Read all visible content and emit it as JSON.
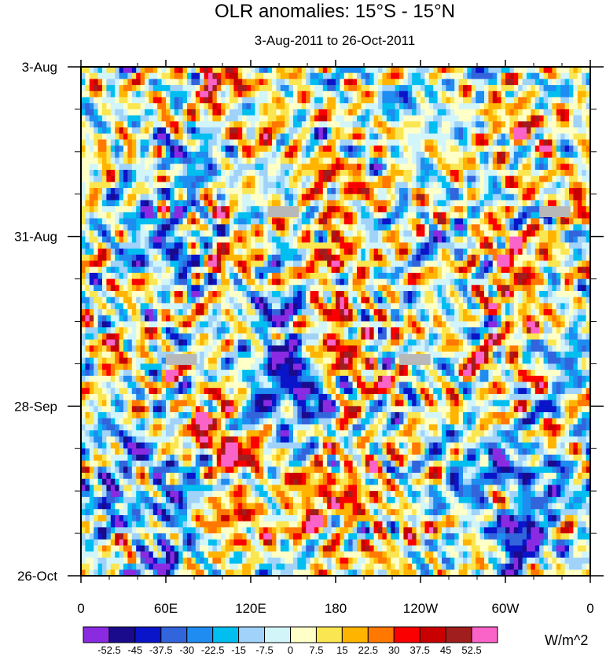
{
  "chart_data": {
    "type": "heatmap",
    "title": "OLR anomalies: 15°S - 15°N",
    "subtitle": "3-Aug-2011 to 26-Oct-2011",
    "xlabel": "",
    "ylabel": "",
    "x_ticks": [
      "0",
      "60E",
      "120E",
      "180",
      "120W",
      "60W",
      "0"
    ],
    "x_tick_values": [
      0,
      60,
      120,
      180,
      240,
      300,
      360
    ],
    "xlim": [
      0,
      360
    ],
    "y_ticks": [
      "3-Aug",
      "31-Aug",
      "28-Sep",
      "26-Oct"
    ],
    "y_tick_values": [
      0,
      28,
      56,
      84
    ],
    "ylim": [
      0,
      84
    ],
    "units": "W/m^2",
    "colorbar": {
      "levels": [
        "-52.5",
        "-45",
        "-37.5",
        "-30",
        "-22.5",
        "-15",
        "-7.5",
        "0",
        "7.5",
        "15",
        "22.5",
        "30",
        "37.5",
        "45",
        "52.5"
      ],
      "level_values": [
        -52.5,
        -45,
        -37.5,
        -30,
        -22.5,
        -15,
        -7.5,
        0,
        7.5,
        15,
        22.5,
        30,
        37.5,
        45,
        52.5
      ],
      "colors": [
        "#8a2be2",
        "#1a0a8c",
        "#0a14c8",
        "#3264dc",
        "#1e8cf0",
        "#00bef0",
        "#a0d2fa",
        "#d2f5fa",
        "#ffffc8",
        "#fae650",
        "#ffb400",
        "#ff7800",
        "#fa0000",
        "#c80000",
        "#a01e1e",
        "#fa64c8"
      ]
    },
    "missing_color": "#b8b8b8",
    "features": [
      {
        "lon": 70,
        "day": 30,
        "value": -35
      },
      {
        "lon": 95,
        "day": 2,
        "value": 38
      },
      {
        "lon": 75,
        "day": 16,
        "value": -30
      },
      {
        "lon": 40,
        "day": 26,
        "value": -25
      },
      {
        "lon": 100,
        "day": 30,
        "value": 22
      },
      {
        "lon": 140,
        "day": 40,
        "value": -30
      },
      {
        "lon": 145,
        "day": 48,
        "value": -45
      },
      {
        "lon": 160,
        "day": 55,
        "value": -40
      },
      {
        "lon": 125,
        "day": 57,
        "value": -30
      },
      {
        "lon": 30,
        "day": 62,
        "value": -25
      },
      {
        "lon": 20,
        "day": 72,
        "value": -30
      },
      {
        "lon": 65,
        "day": 70,
        "value": -35
      },
      {
        "lon": 60,
        "day": 82,
        "value": -40
      },
      {
        "lon": 180,
        "day": 32,
        "value": 30
      },
      {
        "lon": 175,
        "day": 44,
        "value": 35
      },
      {
        "lon": 195,
        "day": 50,
        "value": 22
      },
      {
        "lon": 90,
        "day": 58,
        "value": 30
      },
      {
        "lon": 110,
        "day": 63,
        "value": 40
      },
      {
        "lon": 110,
        "day": 75,
        "value": 28
      },
      {
        "lon": 165,
        "day": 73,
        "value": 40
      },
      {
        "lon": 195,
        "day": 68,
        "value": 25
      },
      {
        "lon": 180,
        "day": 20,
        "value": 30
      },
      {
        "lon": 310,
        "day": 10,
        "value": 28
      },
      {
        "lon": 305,
        "day": 32,
        "value": 38
      },
      {
        "lon": 315,
        "day": 42,
        "value": 20
      },
      {
        "lon": 285,
        "day": 50,
        "value": 18
      },
      {
        "lon": 300,
        "day": 65,
        "value": -32
      },
      {
        "lon": 310,
        "day": 78,
        "value": -55
      },
      {
        "lon": 330,
        "day": 70,
        "value": -28
      },
      {
        "lon": 345,
        "day": 48,
        "value": -25
      },
      {
        "lon": 270,
        "day": 68,
        "value": -25
      },
      {
        "lon": 235,
        "day": 5,
        "value": -15
      },
      {
        "lon": 255,
        "day": 28,
        "value": -10
      },
      {
        "lon": 20,
        "day": 48,
        "value": 18
      },
      {
        "lon": 130,
        "day": 10,
        "value": 15
      },
      {
        "lon": 215,
        "day": 80,
        "value": 15
      },
      {
        "lon": 350,
        "day": 20,
        "value": 18
      }
    ],
    "missing_regions": [
      {
        "lon_start": 132,
        "lon_end": 154,
        "day_start": 23.0,
        "day_end": 24.8
      },
      {
        "lon_start": 324,
        "lon_end": 346,
        "day_start": 23.0,
        "day_end": 24.8
      },
      {
        "lon_start": 60,
        "lon_end": 82,
        "day_start": 47.4,
        "day_end": 49.2
      },
      {
        "lon_start": 225,
        "lon_end": 247,
        "day_start": 47.4,
        "day_end": 49.2
      }
    ]
  }
}
